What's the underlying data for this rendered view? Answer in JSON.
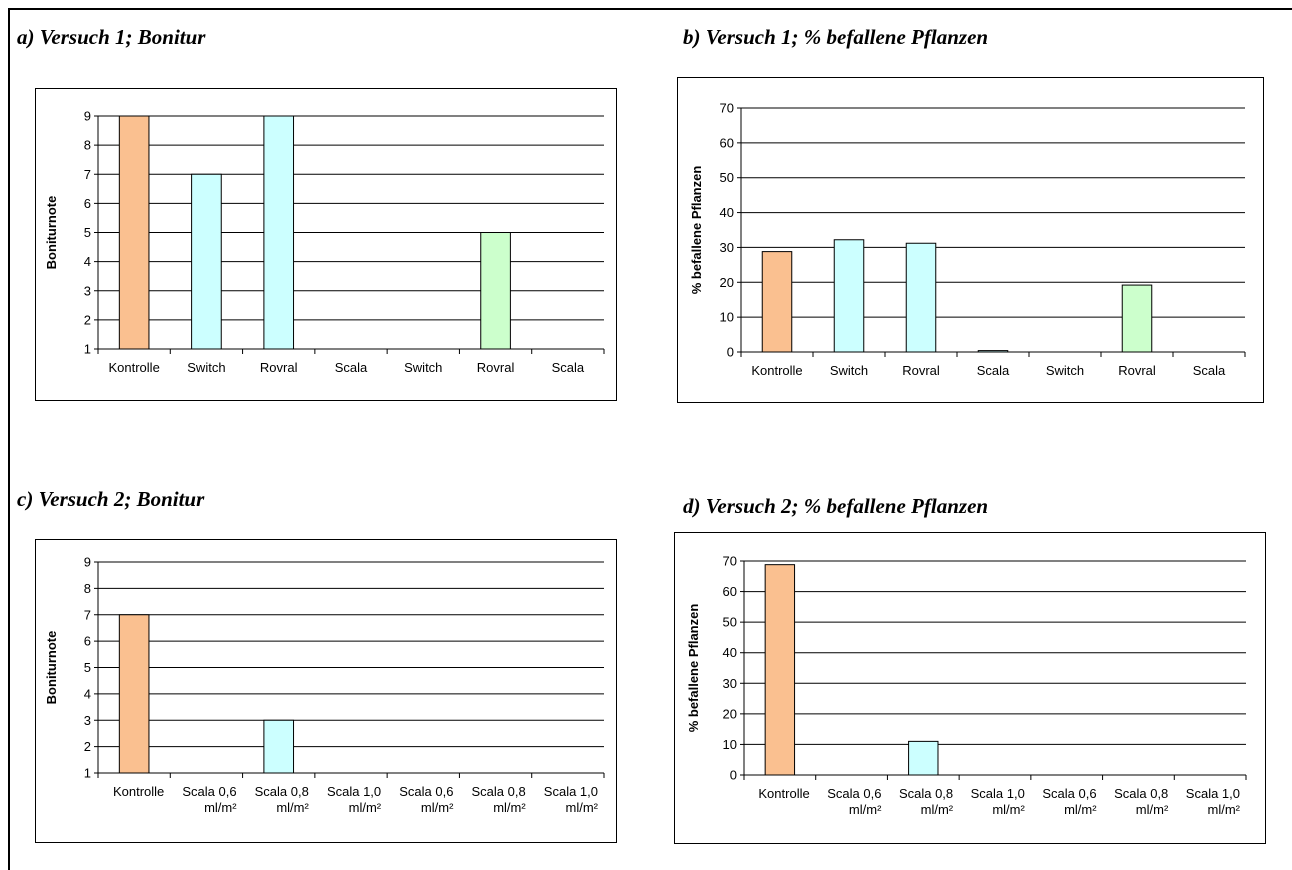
{
  "panels": [
    {
      "title": "a) Versuch 1; Bonitur",
      "chart_data": {
        "type": "bar",
        "categories": [
          "Kontrolle",
          "Switch",
          "Rovral",
          "Scala",
          "Switch",
          "Rovral",
          "Scala"
        ],
        "values": [
          9,
          7,
          9,
          null,
          null,
          5,
          null
        ],
        "bar_colors": [
          "#FAC090",
          "#CCFFFF",
          "#CCFFFF",
          null,
          null,
          "#CCFFCC",
          null
        ],
        "ylabel": "Boniturnote",
        "xlabel": "",
        "ylim": [
          1,
          9
        ],
        "yticks": [
          1,
          2,
          3,
          4,
          5,
          6,
          7,
          8,
          9
        ],
        "grid": true
      }
    },
    {
      "title": "b) Versuch 1; % befallene Pflanzen",
      "chart_data": {
        "type": "bar",
        "categories": [
          "Kontrolle",
          "Switch",
          "Rovral",
          "Scala",
          "Switch",
          "Rovral",
          "Scala"
        ],
        "values": [
          28.8,
          32.2,
          31.2,
          0.4,
          null,
          19.2,
          null
        ],
        "bar_colors": [
          "#FAC090",
          "#CCFFFF",
          "#CCFFFF",
          "#CCFFFF",
          null,
          "#CCFFCC",
          null
        ],
        "ylabel": "% befallene Pflanzen",
        "xlabel": "",
        "ylim": [
          0,
          70
        ],
        "yticks": [
          0,
          10,
          20,
          30,
          40,
          50,
          60,
          70
        ],
        "grid": true
      }
    },
    {
      "title": "c) Versuch 2; Bonitur",
      "chart_data": {
        "type": "bar",
        "categories": [
          [
            "Kontrolle"
          ],
          [
            "Scala 0,6",
            "ml/m²"
          ],
          [
            "Scala 0,8",
            "ml/m²"
          ],
          [
            "Scala 1,0",
            "ml/m²"
          ],
          [
            "Scala 0,6",
            "ml/m²"
          ],
          [
            "Scala 0,8",
            "ml/m²"
          ],
          [
            "Scala 1,0",
            "ml/m²"
          ]
        ],
        "values": [
          7,
          null,
          3,
          null,
          null,
          null,
          null
        ],
        "bar_colors": [
          "#FAC090",
          null,
          "#CCFFFF",
          null,
          null,
          null,
          null
        ],
        "ylabel": "Boniturnote",
        "xlabel": "",
        "ylim": [
          1,
          9
        ],
        "yticks": [
          1,
          2,
          3,
          4,
          5,
          6,
          7,
          8,
          9
        ],
        "grid": true
      }
    },
    {
      "title": "d) Versuch 2; % befallene Pflanzen",
      "chart_data": {
        "type": "bar",
        "categories": [
          [
            "Kontrolle"
          ],
          [
            "Scala 0,6",
            "ml/m²"
          ],
          [
            "Scala 0,8",
            "ml/m²"
          ],
          [
            "Scala 1,0",
            "ml/m²"
          ],
          [
            "Scala 0,6",
            "ml/m²"
          ],
          [
            "Scala 0,8",
            "ml/m²"
          ],
          [
            "Scala 1,0",
            "ml/m²"
          ]
        ],
        "values": [
          68.8,
          null,
          11,
          null,
          null,
          null,
          null
        ],
        "bar_colors": [
          "#FAC090",
          null,
          "#CCFFFF",
          null,
          null,
          null,
          null
        ],
        "ylabel": "% befallene Pflanzen",
        "xlabel": "",
        "ylim": [
          0,
          70
        ],
        "yticks": [
          0,
          10,
          20,
          30,
          40,
          50,
          60,
          70
        ],
        "grid": true
      }
    }
  ]
}
